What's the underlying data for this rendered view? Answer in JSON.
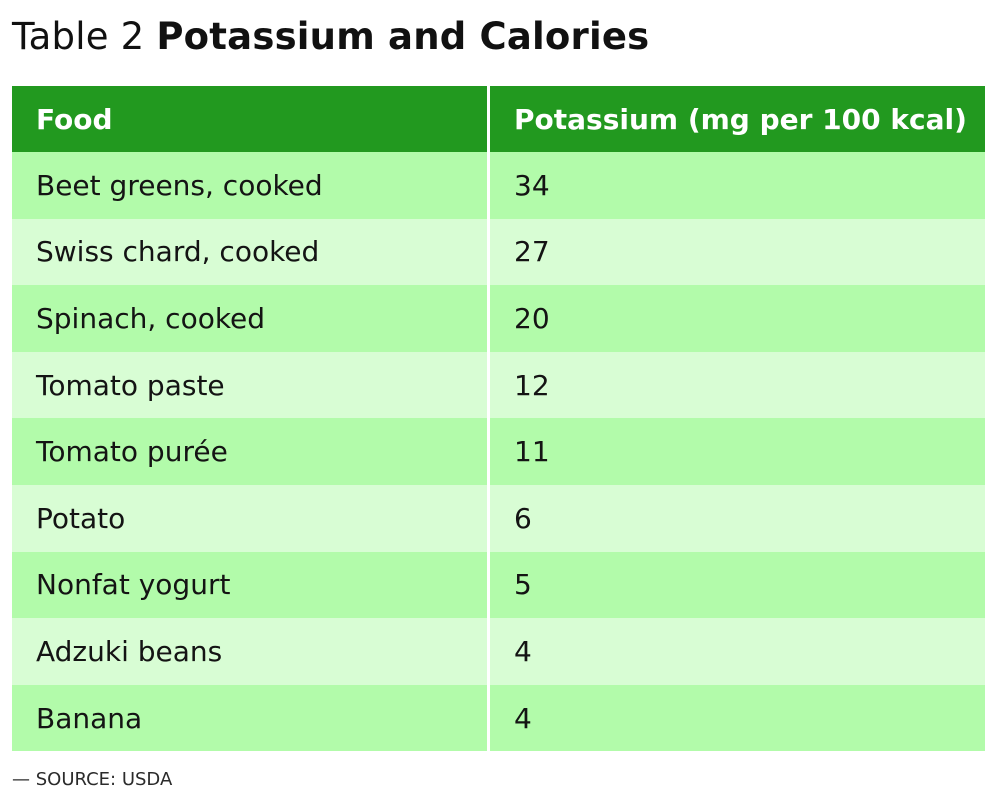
{
  "title": {
    "prefix": "Table 2",
    "main": "Potassium and Calories"
  },
  "table": {
    "headers": [
      "Food",
      "Potassium (mg per 100 kcal)"
    ],
    "rows": [
      {
        "food": "Beet greens, cooked",
        "potassium": "34"
      },
      {
        "food": "Swiss chard, cooked",
        "potassium": "27"
      },
      {
        "food": "Spinach, cooked",
        "potassium": "20"
      },
      {
        "food": "Tomato paste",
        "potassium": "12"
      },
      {
        "food": "Tomato purée",
        "potassium": "11"
      },
      {
        "food": "Potato",
        "potassium": "6"
      },
      {
        "food": "Nonfat yogurt",
        "potassium": "5"
      },
      {
        "food": "Adzuki beans",
        "potassium": "4"
      },
      {
        "food": "Banana",
        "potassium": "4"
      }
    ]
  },
  "source": "— SOURCE: USDA",
  "colors": {
    "header_background": "#22991f",
    "row_dark": "#b2fbaa",
    "row_light": "#d8fdd4"
  }
}
